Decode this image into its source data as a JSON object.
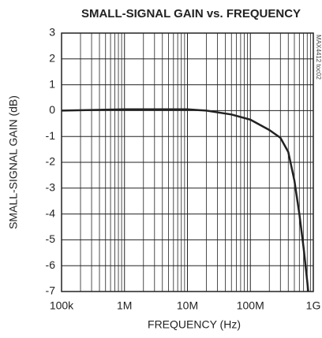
{
  "chart_data": {
    "type": "line",
    "title": "SMALL-SIGNAL GAIN  vs. FREQUENCY",
    "x_label": "FREQUENCY (Hz)",
    "y_label": "SMALL-SIGNAL GAIN (dB)",
    "side_note": "MAX4412 toc02",
    "x_log": true,
    "grid": true,
    "minor_grid": true,
    "xlim": [
      100000,
      1000000000
    ],
    "xticks": [
      {
        "value": 100000,
        "label": "100k"
      },
      {
        "value": 1000000,
        "label": "1M"
      },
      {
        "value": 10000000,
        "label": "10M"
      },
      {
        "value": 100000000,
        "label": "100M"
      },
      {
        "value": 1000000000,
        "label": "1G"
      }
    ],
    "ylim": [
      -7,
      3
    ],
    "yticks": [
      -7,
      -6,
      -5,
      -4,
      -3,
      -2,
      -1,
      0,
      1,
      2,
      3
    ],
    "series": [
      {
        "name": "gain",
        "color": "#222222",
        "x": [
          100000,
          1000000,
          10000000,
          20000000,
          50000000,
          100000000,
          200000000,
          300000000,
          400000000,
          500000000,
          600000000,
          700000000,
          800000000,
          830000000
        ],
        "values": [
          0,
          0.05,
          0.05,
          0,
          -0.15,
          -0.35,
          -0.75,
          -1.05,
          -1.6,
          -2.7,
          -4.0,
          -5.3,
          -6.6,
          -7
        ]
      }
    ]
  }
}
